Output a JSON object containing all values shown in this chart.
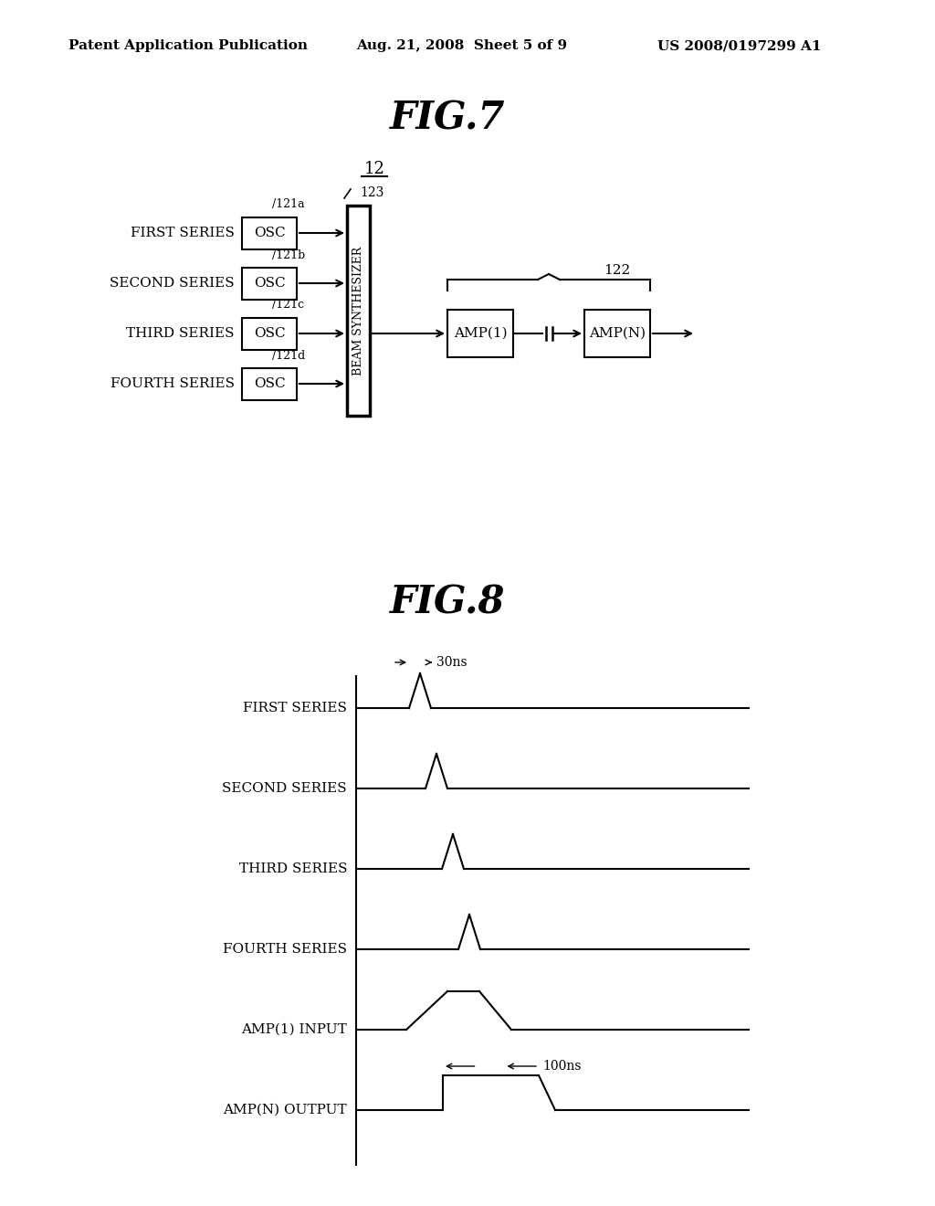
{
  "bg_color": "#ffffff",
  "header_left": "Patent Application Publication",
  "header_center": "Aug. 21, 2008  Sheet 5 of 9",
  "header_right": "US 2008/0197299 A1",
  "fig7_title": "FIG.7",
  "fig8_title": "FIG.8",
  "ref12": "12",
  "ref122": "122",
  "ref123": "123",
  "ref121a": "/121a",
  "ref121b": "/121b",
  "ref121c": "/121c",
  "ref121d": "/121d",
  "series_labels": [
    "FIRST SERIES",
    "SECOND SERIES",
    "THIRD SERIES",
    "FOURTH SERIES"
  ],
  "osc_label": "OSC",
  "beam_synth_label": "BEAM SYNTHESIZER",
  "amp1_label": "AMP(1)",
  "ampN_label": "AMP(N)",
  "waveform_labels": [
    "FIRST SERIES",
    "SECOND SERIES",
    "THIRD SERIES",
    "FOURTH SERIES",
    "AMP(1) INPUT",
    "AMP(N) OUTPUT"
  ],
  "annotation_30ns": "30ns",
  "annotation_100ns": "100ns"
}
